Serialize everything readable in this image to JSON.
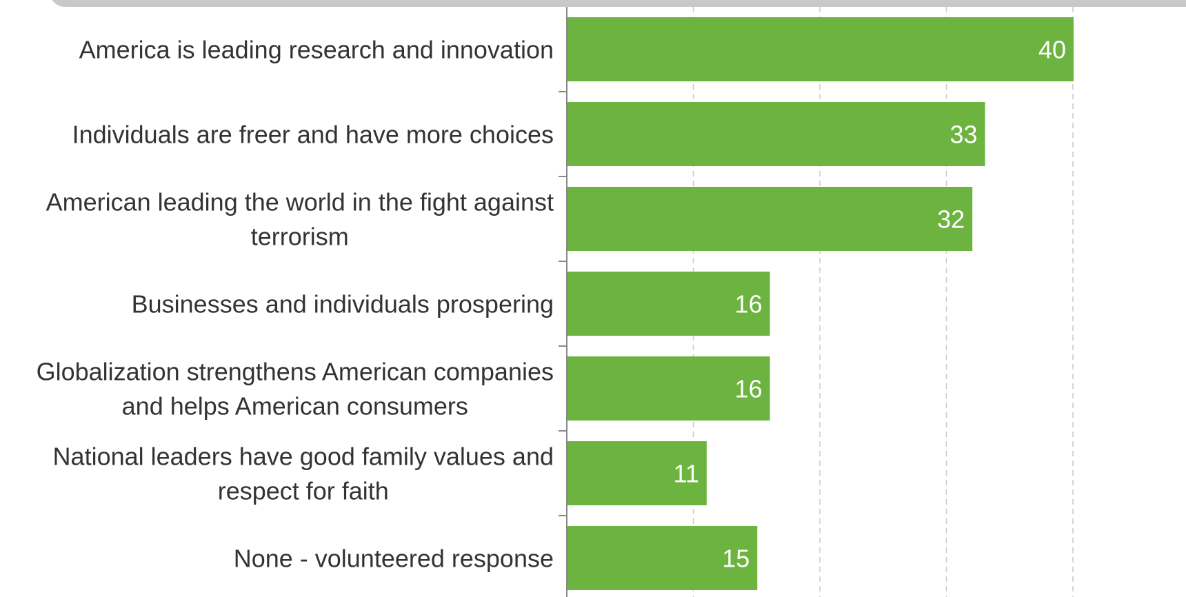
{
  "header": {
    "banner_text": ""
  },
  "colors": {
    "bar": "#6db33f",
    "grid": "#c8c8c8",
    "axis": "#888888",
    "label": "#333333",
    "banner": "#c8c8c8"
  },
  "chart_data": {
    "type": "bar",
    "orientation": "horizontal",
    "categories": [
      [
        "America is leading research and innovation"
      ],
      [
        "Individuals are freer and have more choices"
      ],
      [
        "American leading the world in the fight against",
        "terrorism"
      ],
      [
        "Businesses and individuals prospering"
      ],
      [
        "Globalization strengthens American companies",
        "and helps American consumers"
      ],
      [
        "National leaders have good family values and",
        "respect for faith"
      ],
      [
        "None - volunteered response"
      ]
    ],
    "values": [
      40,
      33,
      32,
      16,
      16,
      11,
      15
    ],
    "xlim": [
      0,
      50
    ],
    "grid": true
  }
}
